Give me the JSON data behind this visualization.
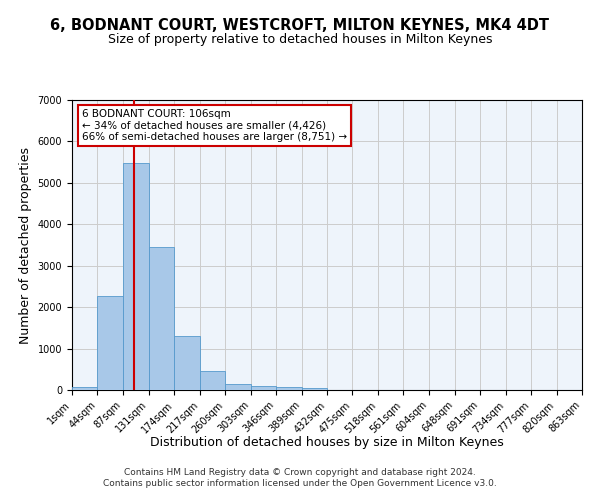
{
  "title": "6, BODNANT COURT, WESTCROFT, MILTON KEYNES, MK4 4DT",
  "subtitle": "Size of property relative to detached houses in Milton Keynes",
  "xlabel": "Distribution of detached houses by size in Milton Keynes",
  "ylabel": "Number of detached properties",
  "footer_line1": "Contains HM Land Registry data © Crown copyright and database right 2024.",
  "footer_line2": "Contains public sector information licensed under the Open Government Licence v3.0.",
  "bin_edges": [
    1,
    44,
    87,
    131,
    174,
    217,
    260,
    303,
    346,
    389,
    432,
    475,
    518,
    561,
    604,
    648,
    691,
    734,
    777,
    820,
    863
  ],
  "bar_heights": [
    80,
    2280,
    5470,
    3440,
    1300,
    460,
    155,
    90,
    70,
    40,
    0,
    0,
    0,
    0,
    0,
    0,
    0,
    0,
    0,
    0
  ],
  "bar_color": "#a8c8e8",
  "bar_edgecolor": "#5599cc",
  "property_size": 106,
  "red_line_color": "#cc0000",
  "annotation_line1": "6 BODNANT COURT: 106sqm",
  "annotation_line2": "← 34% of detached houses are smaller (4,426)",
  "annotation_line3": "66% of semi-detached houses are larger (8,751) →",
  "annotation_box_color": "#cc0000",
  "ylim": [
    0,
    7000
  ],
  "yticks": [
    0,
    1000,
    2000,
    3000,
    4000,
    5000,
    6000,
    7000
  ],
  "grid_color": "#cccccc",
  "bg_color": "#eef4fb",
  "title_fontsize": 10.5,
  "subtitle_fontsize": 9,
  "axis_label_fontsize": 9,
  "tick_fontsize": 7,
  "footer_fontsize": 6.5,
  "annotation_fontsize": 7.5
}
